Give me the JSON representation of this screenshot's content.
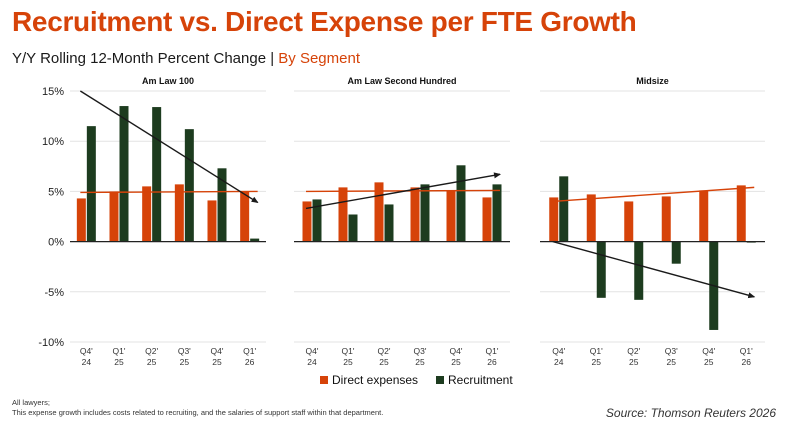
{
  "title": "Recruitment vs. Direct Expense per FTE Growth",
  "subtitle_main": "Y/Y Rolling 12-Month Percent  Change |",
  "subtitle_accent": "By Segment",
  "footnote_1": "All lawyers;",
  "footnote_2": "This expense growth includes costs related to recruiting, and the salaries of support staff within that department.",
  "source": "Source: Thomson Reuters 2026",
  "colors": {
    "direct": "#d64309",
    "recruitment": "#1d3c1f",
    "trend": "#1a1a1a",
    "grid": "#e3e3e3",
    "title": "#d64309"
  },
  "chart_data": {
    "type": "bar",
    "ylim": [
      -10,
      15
    ],
    "yticks": [
      -10,
      -5,
      0,
      5,
      10,
      15
    ],
    "ytick_labels": [
      "-10%",
      "-5%",
      "0%",
      "5%",
      "10%",
      "15%"
    ],
    "categories": [
      [
        "Q4'",
        "24"
      ],
      [
        "Q1'",
        "25"
      ],
      [
        "Q2'",
        "25"
      ],
      [
        "Q3'",
        "25"
      ],
      [
        "Q4'",
        "25"
      ],
      [
        "Q1'",
        "26"
      ]
    ],
    "legend": [
      "Direct expenses",
      "Recruitment"
    ],
    "legend_position": "bottom",
    "grid": true,
    "panels": [
      {
        "name": "Am Law 100",
        "series": [
          {
            "name": "Direct expenses",
            "values": [
              4.3,
              5.0,
              5.5,
              5.7,
              4.1,
              5.0
            ]
          },
          {
            "name": "Recruitment",
            "values": [
              11.5,
              13.5,
              13.4,
              11.2,
              7.3,
              0.3
            ]
          }
        ],
        "trendlines": [
          {
            "series": "Direct expenses",
            "y_start": 4.9,
            "y_end": 5.0
          },
          {
            "series": "Recruitment",
            "y_start": 15.0,
            "y_end": 3.9
          }
        ]
      },
      {
        "name": "Am Law Second Hundred",
        "series": [
          {
            "name": "Direct expenses",
            "values": [
              4.0,
              5.4,
              5.9,
              5.4,
              5.1,
              4.4
            ]
          },
          {
            "name": "Recruitment",
            "values": [
              4.2,
              2.7,
              3.7,
              5.7,
              7.6,
              5.7
            ]
          }
        ],
        "trendlines": [
          {
            "series": "Direct expenses",
            "y_start": 5.0,
            "y_end": 5.1
          },
          {
            "series": "Recruitment",
            "y_start": 3.3,
            "y_end": 6.7
          }
        ]
      },
      {
        "name": "Midsize",
        "series": [
          {
            "name": "Direct expenses",
            "values": [
              4.4,
              4.7,
              4.0,
              4.5,
              5.1,
              5.6
            ]
          },
          {
            "name": "Recruitment",
            "values": [
              6.5,
              -5.6,
              -5.8,
              -2.2,
              -8.8,
              -0.1
            ]
          }
        ],
        "trendlines": [
          {
            "series": "Direct expenses",
            "y_start": 4.0,
            "y_end": 5.4
          },
          {
            "series": "Recruitment",
            "y_start": 0.0,
            "y_end": -5.5
          }
        ]
      }
    ]
  }
}
